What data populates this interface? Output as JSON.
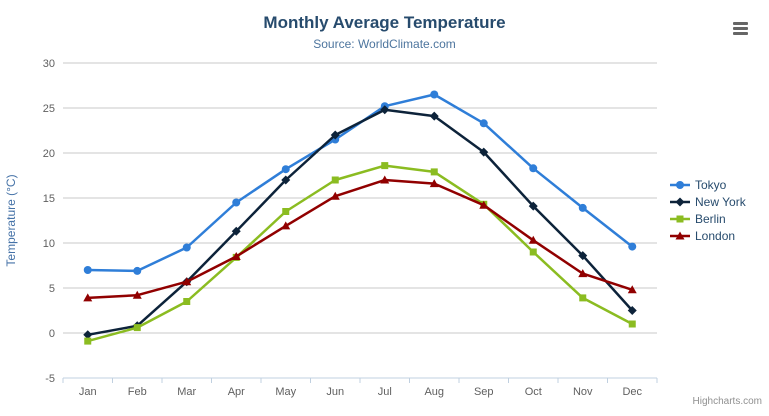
{
  "header": {
    "title": "Monthly Average Temperature",
    "subtitle": "Source: WorldClimate.com"
  },
  "credits": {
    "label": "Highcharts.com"
  },
  "chart_data": {
    "type": "line",
    "title": "Monthly Average Temperature",
    "subtitle": "Source: WorldClimate.com",
    "categories": [
      "Jan",
      "Feb",
      "Mar",
      "Apr",
      "May",
      "Jun",
      "Jul",
      "Aug",
      "Sep",
      "Oct",
      "Nov",
      "Dec"
    ],
    "series": [
      {
        "name": "Tokyo",
        "color": "#2f7ed8",
        "symbol": "circle",
        "values": [
          7.0,
          6.9,
          9.5,
          14.5,
          18.2,
          21.5,
          25.2,
          26.5,
          23.3,
          18.3,
          13.9,
          9.6
        ]
      },
      {
        "name": "New York",
        "color": "#0d233a",
        "symbol": "diamond",
        "values": [
          -0.2,
          0.8,
          5.7,
          11.3,
          17.0,
          22.0,
          24.8,
          24.1,
          20.1,
          14.1,
          8.6,
          2.5
        ]
      },
      {
        "name": "Berlin",
        "color": "#8bbc21",
        "symbol": "square",
        "values": [
          -0.9,
          0.6,
          3.5,
          8.4,
          13.5,
          17.0,
          18.6,
          17.9,
          14.3,
          9.0,
          3.9,
          1.0
        ]
      },
      {
        "name": "London",
        "color": "#910000",
        "symbol": "triangle",
        "values": [
          3.9,
          4.2,
          5.7,
          8.5,
          11.9,
          15.2,
          17.0,
          16.6,
          14.2,
          10.3,
          6.6,
          4.8
        ]
      }
    ],
    "xlabel": "",
    "ylabel": "Temperature (°C)",
    "ylim": [
      -5,
      30
    ],
    "ytick_step": 5,
    "grid": "horizontal",
    "legend_position": "right",
    "axis_colors": {
      "grid_line": "#c8c8c8",
      "axis_line": "#c0d0e0",
      "tick_label": "#606060",
      "y_title": "#4572a7"
    }
  }
}
